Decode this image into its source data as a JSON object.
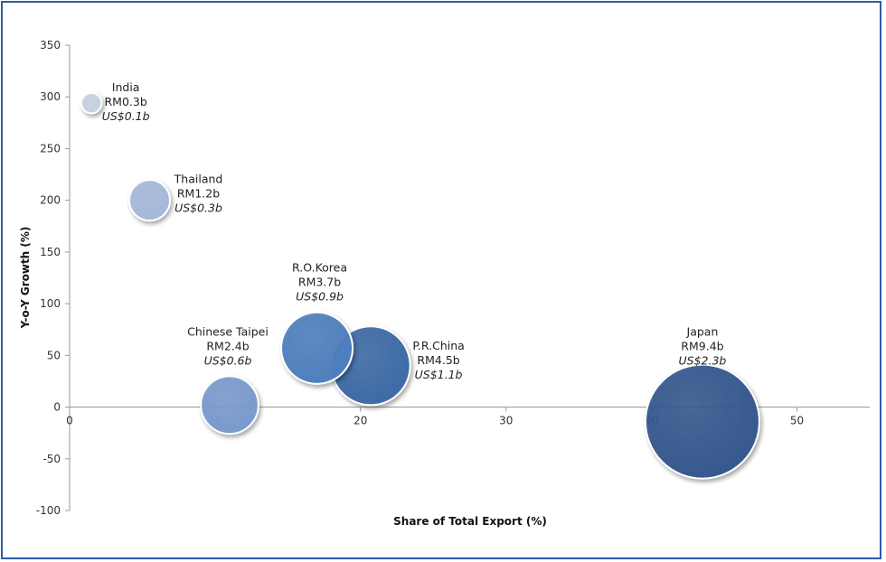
{
  "chart_data": {
    "type": "bubble",
    "xlabel": "Share of Total Export (%)",
    "ylabel": "Y-o-Y Growth (%)",
    "xlim": [
      0,
      55
    ],
    "ylim": [
      -100,
      350
    ],
    "xticks": [
      "0",
      "10",
      "20",
      "30",
      "40",
      "50"
    ],
    "xtick_values": [
      0,
      10,
      20,
      30,
      40,
      50
    ],
    "yticks": [
      "-100",
      "-50",
      "0",
      "50",
      "100",
      "150",
      "200",
      "250",
      "300",
      "350"
    ],
    "ytick_values": [
      -100,
      -50,
      0,
      50,
      100,
      150,
      200,
      250,
      300,
      350
    ],
    "grid": false,
    "points": [
      {
        "name": "India",
        "x": 1.5,
        "y": 294,
        "value_rm": "RM0.3b",
        "value_usd": "US$0.1b",
        "rm_billion": 0.3,
        "color": "#c6d0e2"
      },
      {
        "name": "Thailand",
        "x": 5.5,
        "y": 200,
        "value_rm": "RM1.2b",
        "value_usd": "US$0.3b",
        "rm_billion": 1.2,
        "color": "#a6b8da"
      },
      {
        "name": "Chinese Taipei",
        "x": 11,
        "y": 2,
        "value_rm": "RM2.4b",
        "value_usd": "US$0.6b",
        "rm_billion": 2.4,
        "color": "#7a9ace"
      },
      {
        "name": "R.O.Korea",
        "x": 17,
        "y": 57,
        "value_rm": "RM3.7b",
        "value_usd": "US$0.9b",
        "rm_billion": 3.7,
        "color": "#4f7fbd"
      },
      {
        "name": "P.R.China",
        "x": 20.7,
        "y": 40,
        "value_rm": "RM4.5b",
        "value_usd": "US$1.1b",
        "rm_billion": 4.5,
        "color": "#3d6aa5"
      },
      {
        "name": "Japan",
        "x": 43.5,
        "y": -14,
        "value_rm": "RM9.4b",
        "value_usd": "US$2.3b",
        "rm_billion": 9.4,
        "color": "#35588e"
      }
    ]
  }
}
